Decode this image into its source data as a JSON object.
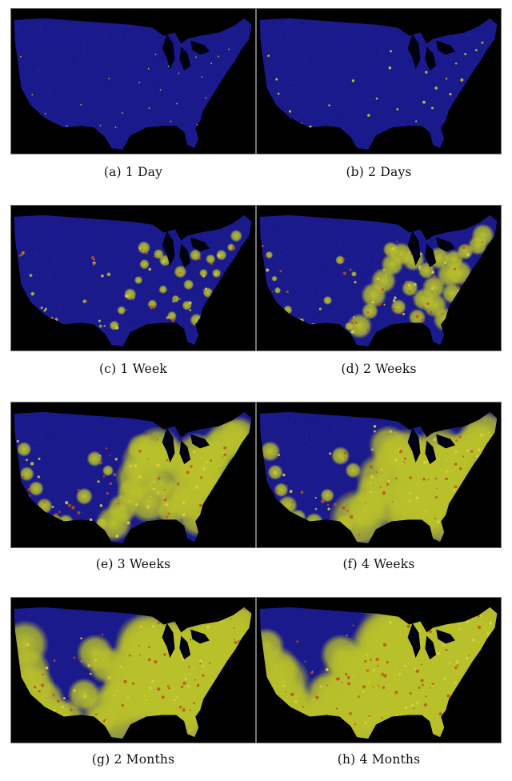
{
  "figure": {
    "panels": [
      {
        "id": "a",
        "caption": "(a) 1 Day",
        "spread_stage": 0
      },
      {
        "id": "b",
        "caption": "(b) 2 Days",
        "spread_stage": 1
      },
      {
        "id": "c",
        "caption": "(c) 1 Week",
        "spread_stage": 2
      },
      {
        "id": "d",
        "caption": "(d) 2 Weeks",
        "spread_stage": 3
      },
      {
        "id": "e",
        "caption": "(e) 3 Weeks",
        "spread_stage": 4
      },
      {
        "id": "f",
        "caption": "(f) 4 Weeks",
        "spread_stage": 5
      },
      {
        "id": "g",
        "caption": "(g) 2 Months",
        "spread_stage": 6
      },
      {
        "id": "h",
        "caption": "(h) 4 Months",
        "spread_stage": 7
      }
    ]
  },
  "colors": {
    "background": "#000000",
    "uninfected": "#1a1a8c",
    "infected": "#b8c02a",
    "hotspot": "#c0501a"
  }
}
